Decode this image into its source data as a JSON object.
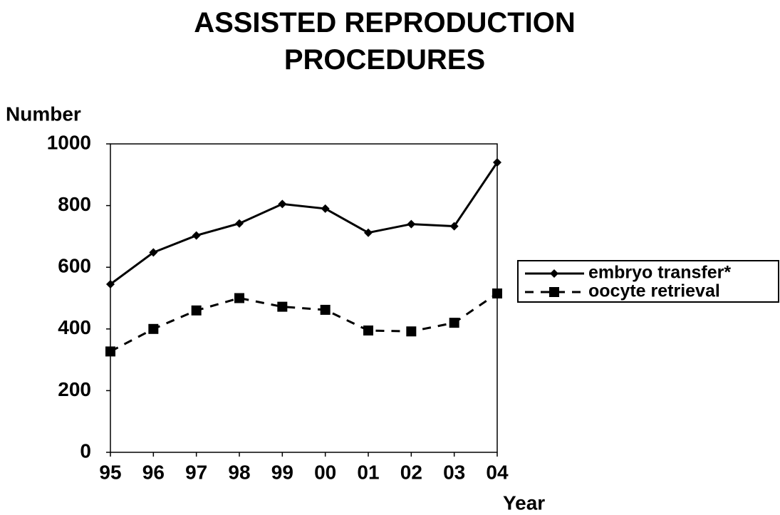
{
  "chart_data": {
    "type": "line",
    "title": "ASSISTED REPRODUCTION PROCEDURES",
    "ylabel": "Number",
    "xlabel": "Year",
    "categories": [
      "95",
      "96",
      "97",
      "98",
      "99",
      "00",
      "01",
      "02",
      "03",
      "04"
    ],
    "series": [
      {
        "name": "embryo transfer*",
        "color": "#000000",
        "linestyle": "solid",
        "marker": "diamond",
        "values": [
          545,
          648,
          703,
          742,
          805,
          790,
          712,
          740,
          733,
          940
        ]
      },
      {
        "name": "oocyte retrieval",
        "color": "#000000",
        "linestyle": "dashed",
        "marker": "square",
        "values": [
          327,
          400,
          460,
          500,
          472,
          462,
          395,
          392,
          420,
          515
        ]
      }
    ],
    "ylim": [
      0,
      1000
    ],
    "yticks": [
      0,
      200,
      400,
      600,
      800,
      1000
    ],
    "grid": false,
    "legend": "right"
  }
}
